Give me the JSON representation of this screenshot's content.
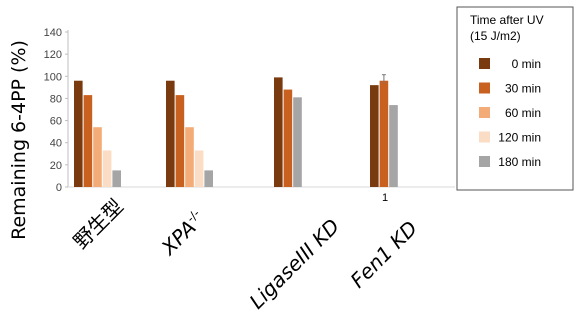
{
  "chart_data": {
    "type": "bar",
    "title": "",
    "ylabel": "Remaining 6-4PP (%)",
    "xlabel": "",
    "ylim": [
      0,
      140
    ],
    "yticks": [
      0,
      20,
      40,
      60,
      80,
      100,
      120,
      140
    ],
    "grid": false,
    "legend": {
      "title_lines": [
        "Time after UV",
        "(15 J/m2)"
      ],
      "placement": "right"
    },
    "categories": [
      {
        "label": "野生型",
        "italic": false
      },
      {
        "label": "XPA",
        "superscript": "-/-",
        "italic": true
      },
      {
        "label": "LigaseIII KD",
        "italic": true
      },
      {
        "label": "Fen1 KD",
        "italic": true
      }
    ],
    "series": [
      {
        "name": "0 min",
        "color": "#7a3a10",
        "values": [
          96,
          96,
          99,
          92
        ]
      },
      {
        "name": "30 min",
        "color": "#c8611f",
        "values": [
          83,
          83,
          88,
          96
        ]
      },
      {
        "name": "60 min",
        "color": "#f3ab78",
        "values": [
          54,
          54,
          null,
          null
        ]
      },
      {
        "name": "120 min",
        "color": "#fbdcc5",
        "values": [
          33,
          33,
          null,
          null
        ]
      },
      {
        "name": "180 min",
        "color": "#a5a5a5",
        "values": [
          15,
          15,
          81,
          74
        ]
      }
    ],
    "annotations": [
      {
        "text": "1",
        "near_category": "Fen1 KD"
      }
    ]
  }
}
